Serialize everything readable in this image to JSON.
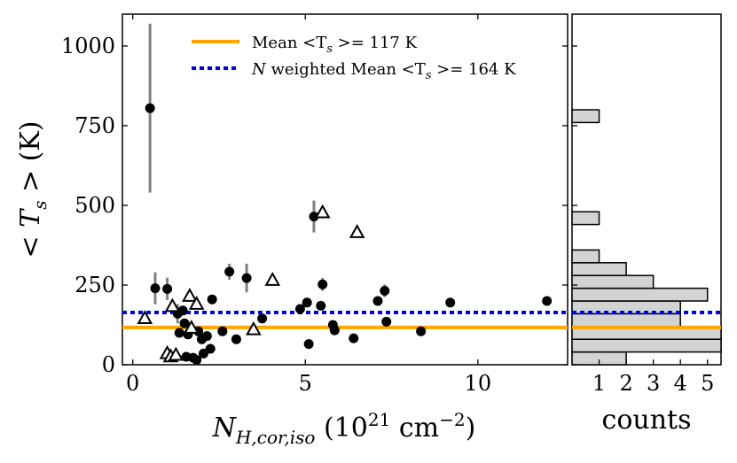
{
  "chart_data": [
    {
      "type": "scatter",
      "xlabel_parts": {
        "base": "N",
        "subscript": "H,cor,iso",
        "unit_prefix": " (10",
        "exp": "21",
        "unit_mid": " cm",
        "unit_exp": "−2",
        "unit_suffix": ")"
      },
      "ylabel_parts": {
        "pre": "< ",
        "var": "T",
        "sub": "s",
        "post": " > (K)"
      },
      "xlim": [
        -0.3,
        12.6
      ],
      "ylim": [
        0,
        1100
      ],
      "xticks": [
        0,
        5,
        10
      ],
      "yticks": [
        0,
        250,
        500,
        750,
        1000
      ],
      "mean_line": {
        "value": 117,
        "color": "#FFA500"
      },
      "weighted_line": {
        "value": 164,
        "color": "#0000E0"
      },
      "legend": {
        "mean": {
          "label": "Mean <T",
          "sub": "s",
          "tail": " >= 117 K"
        },
        "weighted": {
          "italic": "N",
          "label": " weighted Mean <T",
          "sub": "s",
          "tail": " >= 164 K"
        }
      },
      "detections": [
        {
          "x": 0.5,
          "y": 805,
          "err": 265
        },
        {
          "x": 0.65,
          "y": 240,
          "err": 50
        },
        {
          "x": 1.0,
          "y": 238,
          "err": 35
        },
        {
          "x": 1.3,
          "y": 160,
          "err": 30
        },
        {
          "x": 1.35,
          "y": 100
        },
        {
          "x": 1.45,
          "y": 170
        },
        {
          "x": 1.5,
          "y": 130
        },
        {
          "x": 1.6,
          "y": 95
        },
        {
          "x": 1.55,
          "y": 25
        },
        {
          "x": 1.75,
          "y": 22
        },
        {
          "x": 1.85,
          "y": 15
        },
        {
          "x": 1.9,
          "y": 105
        },
        {
          "x": 2.0,
          "y": 80
        },
        {
          "x": 2.05,
          "y": 35
        },
        {
          "x": 2.15,
          "y": 90
        },
        {
          "x": 2.25,
          "y": 50
        },
        {
          "x": 2.3,
          "y": 205
        },
        {
          "x": 2.6,
          "y": 105
        },
        {
          "x": 2.8,
          "y": 292,
          "err": 25
        },
        {
          "x": 3.0,
          "y": 80
        },
        {
          "x": 3.3,
          "y": 272,
          "err": 45
        },
        {
          "x": 3.75,
          "y": 145
        },
        {
          "x": 4.85,
          "y": 175
        },
        {
          "x": 5.05,
          "y": 195
        },
        {
          "x": 5.1,
          "y": 65
        },
        {
          "x": 5.25,
          "y": 465,
          "err": 50
        },
        {
          "x": 5.45,
          "y": 185
        },
        {
          "x": 5.5,
          "y": 252,
          "err": 20
        },
        {
          "x": 5.8,
          "y": 125
        },
        {
          "x": 5.85,
          "y": 108
        },
        {
          "x": 6.4,
          "y": 83
        },
        {
          "x": 7.1,
          "y": 200
        },
        {
          "x": 7.3,
          "y": 232,
          "err": 20
        },
        {
          "x": 7.35,
          "y": 135
        },
        {
          "x": 8.35,
          "y": 105
        },
        {
          "x": 9.2,
          "y": 195
        },
        {
          "x": 12.0,
          "y": 200
        }
      ],
      "limits": [
        {
          "x": 0.35,
          "y": 145
        },
        {
          "x": 1.0,
          "y": 35
        },
        {
          "x": 1.1,
          "y": 25
        },
        {
          "x": 1.15,
          "y": 183
        },
        {
          "x": 1.25,
          "y": 30
        },
        {
          "x": 1.65,
          "y": 215
        },
        {
          "x": 1.7,
          "y": 115
        },
        {
          "x": 1.85,
          "y": 190
        },
        {
          "x": 3.5,
          "y": 110
        },
        {
          "x": 4.05,
          "y": 265
        },
        {
          "x": 5.5,
          "y": 477
        },
        {
          "x": 6.5,
          "y": 415
        }
      ]
    },
    {
      "type": "bar",
      "orientation": "horizontal",
      "xlabel": "counts",
      "xticks": [
        1,
        2,
        3,
        4,
        5
      ],
      "xlim": [
        0,
        5.5
      ],
      "bin_width": 40,
      "bins": [
        {
          "start": 0,
          "count": 2
        },
        {
          "start": 40,
          "count": 5.5
        },
        {
          "start": 80,
          "count": 5.5
        },
        {
          "start": 120,
          "count": 4
        },
        {
          "start": 160,
          "count": 4
        },
        {
          "start": 200,
          "count": 5
        },
        {
          "start": 240,
          "count": 3
        },
        {
          "start": 280,
          "count": 2
        },
        {
          "start": 320,
          "count": 1
        },
        {
          "start": 440,
          "count": 1
        },
        {
          "start": 760,
          "count": 1
        }
      ]
    }
  ]
}
